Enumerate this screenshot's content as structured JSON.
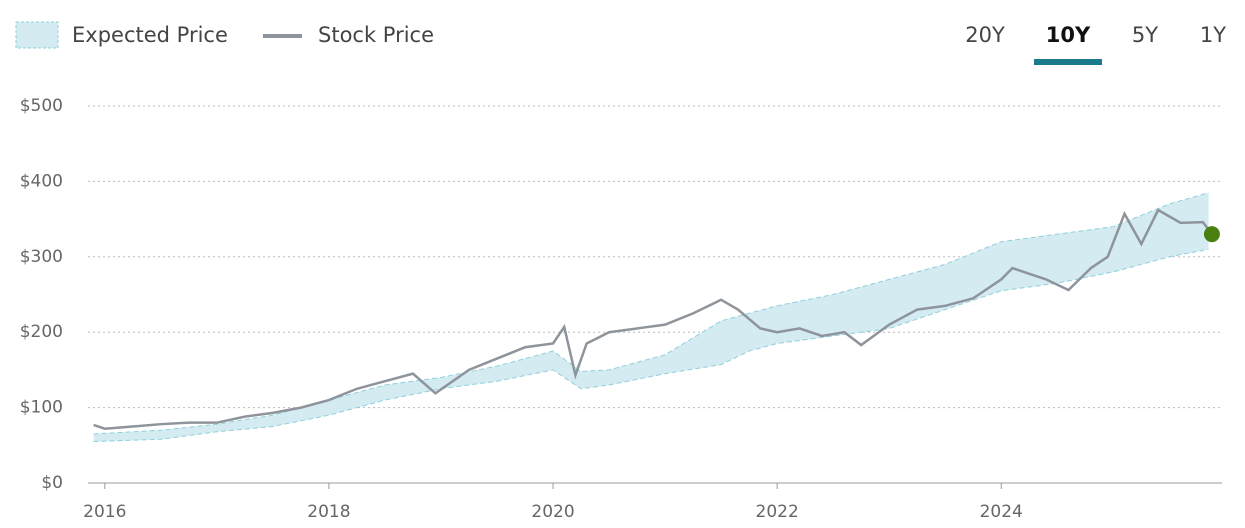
{
  "chart_data": {
    "type": "line",
    "range_buttons": [
      "20Y",
      "10Y",
      "5Y",
      "1Y"
    ],
    "active_range": "10Y",
    "active_color": "#1b7a8c",
    "xlim": [
      2015.85,
      2025.97
    ],
    "xticks": [
      2016,
      2018,
      2020,
      2022,
      2024
    ],
    "ylim": [
      0,
      500
    ],
    "yticks": [
      {
        "value": 0,
        "label": "$0"
      },
      {
        "value": 100,
        "label": "$100"
      },
      {
        "value": 200,
        "label": "$200"
      },
      {
        "value": 300,
        "label": "$300"
      },
      {
        "value": 400,
        "label": "$400"
      },
      {
        "value": 500,
        "label": "$500"
      }
    ],
    "grid": true,
    "series": [
      {
        "name": "Expected Price",
        "type": "band",
        "color": "#d3ebf1",
        "edge_color": "#8fd0dc",
        "x": [
          2015.9,
          2016.5,
          2017.0,
          2017.5,
          2018.0,
          2018.5,
          2019.0,
          2019.5,
          2020.0,
          2020.25,
          2020.5,
          2021.0,
          2021.5,
          2021.75,
          2022.0,
          2022.5,
          2023.0,
          2023.5,
          2024.0,
          2024.5,
          2025.0,
          2025.5,
          2025.85
        ],
        "values": [
          65,
          70,
          78,
          90,
          110,
          130,
          140,
          155,
          175,
          148,
          150,
          170,
          215,
          225,
          235,
          250,
          270,
          290,
          320,
          330,
          340,
          370,
          385
        ],
        "low": [
          55,
          58,
          68,
          75,
          90,
          110,
          125,
          135,
          150,
          125,
          130,
          145,
          157,
          175,
          185,
          195,
          205,
          230,
          255,
          265,
          280,
          300,
          310
        ]
      },
      {
        "name": "Stock Price",
        "color": "#8e949b",
        "x": [
          2015.9,
          2016.0,
          2016.25,
          2016.5,
          2016.75,
          2017.0,
          2017.25,
          2017.5,
          2017.75,
          2018.0,
          2018.25,
          2018.5,
          2018.75,
          2018.95,
          2019.25,
          2019.5,
          2019.75,
          2020.0,
          2020.1,
          2020.2,
          2020.3,
          2020.5,
          2020.75,
          2021.0,
          2021.25,
          2021.5,
          2021.65,
          2021.85,
          2022.0,
          2022.2,
          2022.4,
          2022.6,
          2022.75,
          2023.0,
          2023.25,
          2023.5,
          2023.75,
          2024.0,
          2024.1,
          2024.4,
          2024.6,
          2024.8,
          2024.95,
          2025.1,
          2025.25,
          2025.4,
          2025.6,
          2025.8,
          2025.88
        ],
        "values": [
          77,
          72,
          75,
          78,
          80,
          80,
          88,
          93,
          100,
          110,
          125,
          135,
          145,
          119,
          150,
          165,
          180,
          185,
          207,
          143,
          185,
          200,
          205,
          210,
          225,
          243,
          230,
          205,
          200,
          205,
          195,
          200,
          183,
          210,
          230,
          235,
          245,
          270,
          285,
          270,
          256,
          285,
          300,
          357,
          317,
          362,
          345,
          346,
          330
        ]
      }
    ],
    "end_marker_color": "#4a7f12"
  }
}
